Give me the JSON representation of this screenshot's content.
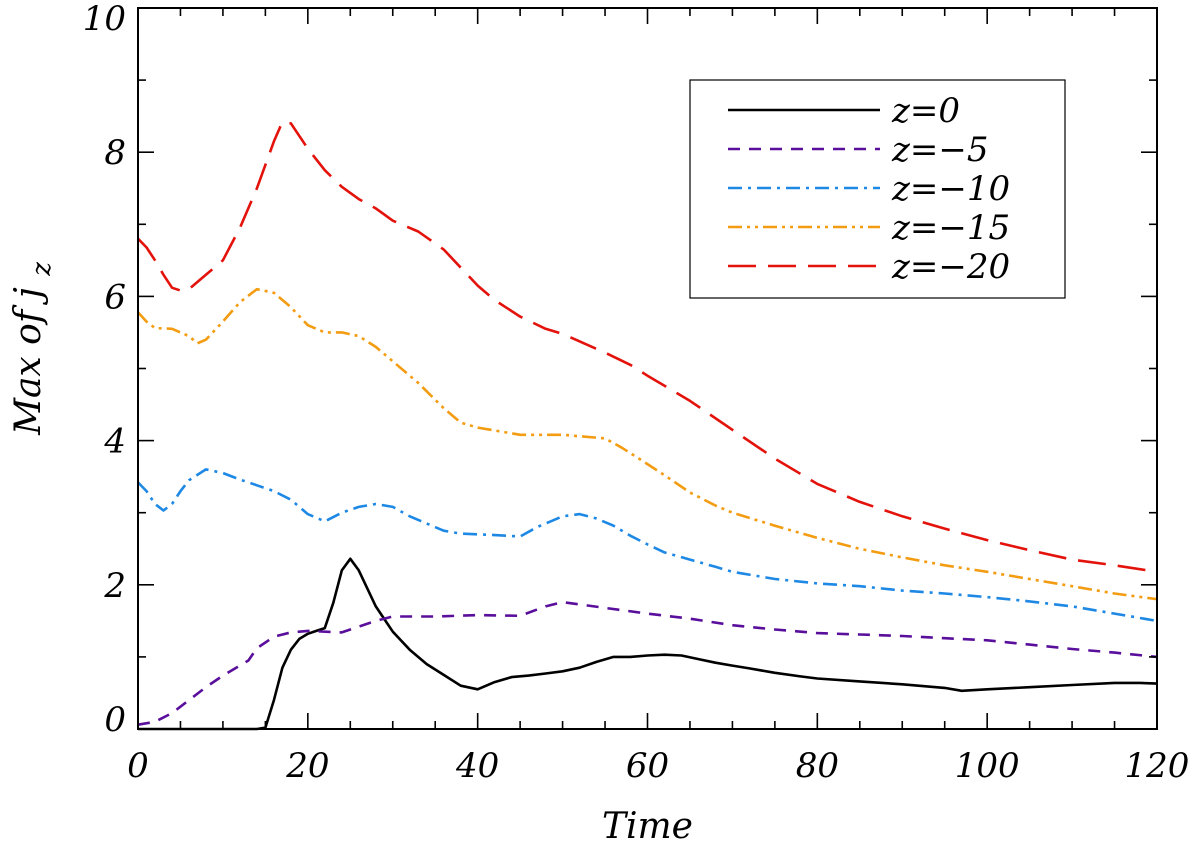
{
  "chart_data": {
    "type": "line",
    "title": "",
    "xlabel": "Time",
    "ylabel_main": "Max of j",
    "ylabel_sub": "z",
    "xlim": [
      0,
      120
    ],
    "ylim": [
      0,
      10
    ],
    "x_ticks": [
      0,
      20,
      40,
      60,
      80,
      100,
      120
    ],
    "y_ticks": [
      0,
      2,
      4,
      6,
      8,
      10
    ],
    "x_tick_labels": [
      "0",
      "20",
      "40",
      "60",
      "80",
      "100",
      "120"
    ],
    "y_tick_labels": [
      "0",
      "2",
      "4",
      "6",
      "8",
      "10"
    ],
    "grid": false,
    "legend_position": "top-right",
    "series": [
      {
        "name": "z=0",
        "color": "#000000",
        "style": "solid",
        "points": [
          [
            0,
            0
          ],
          [
            14,
            0
          ],
          [
            15,
            0.02
          ],
          [
            16,
            0.4
          ],
          [
            17,
            0.85
          ],
          [
            18,
            1.1
          ],
          [
            19,
            1.25
          ],
          [
            20,
            1.32
          ],
          [
            21,
            1.36
          ],
          [
            22,
            1.4
          ],
          [
            23,
            1.75
          ],
          [
            24,
            2.2
          ],
          [
            25,
            2.36
          ],
          [
            26,
            2.2
          ],
          [
            27,
            1.95
          ],
          [
            28,
            1.7
          ],
          [
            30,
            1.35
          ],
          [
            32,
            1.1
          ],
          [
            34,
            0.9
          ],
          [
            36,
            0.75
          ],
          [
            38,
            0.6
          ],
          [
            40,
            0.55
          ],
          [
            42,
            0.65
          ],
          [
            44,
            0.72
          ],
          [
            46,
            0.74
          ],
          [
            48,
            0.77
          ],
          [
            50,
            0.8
          ],
          [
            52,
            0.85
          ],
          [
            54,
            0.93
          ],
          [
            56,
            1.0
          ],
          [
            58,
            1.0
          ],
          [
            60,
            1.02
          ],
          [
            62,
            1.03
          ],
          [
            64,
            1.02
          ],
          [
            66,
            0.97
          ],
          [
            68,
            0.92
          ],
          [
            70,
            0.88
          ],
          [
            72,
            0.84
          ],
          [
            75,
            0.78
          ],
          [
            78,
            0.73
          ],
          [
            80,
            0.7
          ],
          [
            85,
            0.66
          ],
          [
            90,
            0.62
          ],
          [
            95,
            0.57
          ],
          [
            97,
            0.53
          ],
          [
            100,
            0.55
          ],
          [
            105,
            0.58
          ],
          [
            110,
            0.61
          ],
          [
            115,
            0.64
          ],
          [
            118,
            0.64
          ],
          [
            120,
            0.63
          ]
        ]
      },
      {
        "name": "z=−5",
        "color": "#5a0f9c",
        "style": "dashed",
        "points": [
          [
            0,
            0.06
          ],
          [
            2,
            0.1
          ],
          [
            4,
            0.22
          ],
          [
            6,
            0.4
          ],
          [
            8,
            0.58
          ],
          [
            10,
            0.74
          ],
          [
            12,
            0.88
          ],
          [
            13,
            0.95
          ],
          [
            14,
            1.12
          ],
          [
            16,
            1.28
          ],
          [
            18,
            1.34
          ],
          [
            20,
            1.36
          ],
          [
            24,
            1.34
          ],
          [
            26,
            1.42
          ],
          [
            28,
            1.5
          ],
          [
            30,
            1.56
          ],
          [
            35,
            1.56
          ],
          [
            40,
            1.58
          ],
          [
            45,
            1.57
          ],
          [
            48,
            1.7
          ],
          [
            50,
            1.76
          ],
          [
            55,
            1.68
          ],
          [
            60,
            1.6
          ],
          [
            65,
            1.53
          ],
          [
            70,
            1.44
          ],
          [
            75,
            1.38
          ],
          [
            80,
            1.33
          ],
          [
            85,
            1.31
          ],
          [
            90,
            1.29
          ],
          [
            95,
            1.26
          ],
          [
            100,
            1.23
          ],
          [
            105,
            1.17
          ],
          [
            110,
            1.11
          ],
          [
            115,
            1.06
          ],
          [
            120,
            1.0
          ]
        ]
      },
      {
        "name": "z=−10",
        "color": "#1e88e5",
        "style": "dashdot",
        "points": [
          [
            0,
            3.42
          ],
          [
            1,
            3.3
          ],
          [
            2,
            3.12
          ],
          [
            3,
            3.03
          ],
          [
            4,
            3.12
          ],
          [
            5,
            3.3
          ],
          [
            6,
            3.45
          ],
          [
            8,
            3.6
          ],
          [
            10,
            3.55
          ],
          [
            12,
            3.46
          ],
          [
            14,
            3.38
          ],
          [
            16,
            3.3
          ],
          [
            18,
            3.18
          ],
          [
            20,
            2.98
          ],
          [
            22,
            2.88
          ],
          [
            24,
            3.0
          ],
          [
            26,
            3.08
          ],
          [
            28,
            3.12
          ],
          [
            30,
            3.08
          ],
          [
            32,
            2.95
          ],
          [
            34,
            2.85
          ],
          [
            36,
            2.75
          ],
          [
            38,
            2.71
          ],
          [
            40,
            2.7
          ],
          [
            42,
            2.69
          ],
          [
            45,
            2.67
          ],
          [
            47,
            2.8
          ],
          [
            50,
            2.95
          ],
          [
            52,
            2.98
          ],
          [
            54,
            2.92
          ],
          [
            56,
            2.82
          ],
          [
            58,
            2.68
          ],
          [
            60,
            2.56
          ],
          [
            62,
            2.45
          ],
          [
            65,
            2.35
          ],
          [
            68,
            2.25
          ],
          [
            70,
            2.18
          ],
          [
            75,
            2.08
          ],
          [
            80,
            2.02
          ],
          [
            85,
            1.98
          ],
          [
            90,
            1.92
          ],
          [
            95,
            1.88
          ],
          [
            100,
            1.83
          ],
          [
            105,
            1.77
          ],
          [
            110,
            1.7
          ],
          [
            115,
            1.6
          ],
          [
            120,
            1.5
          ]
        ]
      },
      {
        "name": "z=−15",
        "color": "#f39c12",
        "style": "dashdotdot",
        "points": [
          [
            0,
            5.78
          ],
          [
            1,
            5.65
          ],
          [
            2,
            5.56
          ],
          [
            4,
            5.55
          ],
          [
            6,
            5.45
          ],
          [
            7,
            5.35
          ],
          [
            8,
            5.4
          ],
          [
            10,
            5.65
          ],
          [
            12,
            5.92
          ],
          [
            14,
            6.1
          ],
          [
            16,
            6.05
          ],
          [
            18,
            5.85
          ],
          [
            20,
            5.6
          ],
          [
            22,
            5.5
          ],
          [
            24,
            5.5
          ],
          [
            26,
            5.45
          ],
          [
            28,
            5.3
          ],
          [
            30,
            5.1
          ],
          [
            33,
            4.8
          ],
          [
            36,
            4.45
          ],
          [
            38,
            4.25
          ],
          [
            40,
            4.18
          ],
          [
            45,
            4.08
          ],
          [
            50,
            4.08
          ],
          [
            55,
            4.03
          ],
          [
            57,
            3.9
          ],
          [
            59,
            3.75
          ],
          [
            62,
            3.52
          ],
          [
            65,
            3.28
          ],
          [
            68,
            3.1
          ],
          [
            70,
            3.0
          ],
          [
            75,
            2.82
          ],
          [
            80,
            2.65
          ],
          [
            85,
            2.5
          ],
          [
            90,
            2.38
          ],
          [
            95,
            2.27
          ],
          [
            100,
            2.18
          ],
          [
            105,
            2.08
          ],
          [
            110,
            1.98
          ],
          [
            115,
            1.88
          ],
          [
            120,
            1.8
          ]
        ]
      },
      {
        "name": "z=−20",
        "color": "#e3120b",
        "style": "longdash",
        "points": [
          [
            0,
            6.8
          ],
          [
            1,
            6.68
          ],
          [
            2,
            6.5
          ],
          [
            3,
            6.3
          ],
          [
            4,
            6.12
          ],
          [
            5,
            6.08
          ],
          [
            6,
            6.1
          ],
          [
            8,
            6.3
          ],
          [
            10,
            6.5
          ],
          [
            12,
            6.95
          ],
          [
            14,
            7.5
          ],
          [
            16,
            8.15
          ],
          [
            17,
            8.42
          ],
          [
            18,
            8.4
          ],
          [
            20,
            8.05
          ],
          [
            22,
            7.75
          ],
          [
            24,
            7.52
          ],
          [
            26,
            7.35
          ],
          [
            28,
            7.22
          ],
          [
            30,
            7.05
          ],
          [
            33,
            6.9
          ],
          [
            36,
            6.65
          ],
          [
            38,
            6.4
          ],
          [
            40,
            6.15
          ],
          [
            42,
            5.95
          ],
          [
            45,
            5.72
          ],
          [
            48,
            5.55
          ],
          [
            50,
            5.48
          ],
          [
            55,
            5.22
          ],
          [
            58,
            5.05
          ],
          [
            60,
            4.9
          ],
          [
            65,
            4.55
          ],
          [
            70,
            4.15
          ],
          [
            75,
            3.75
          ],
          [
            80,
            3.4
          ],
          [
            85,
            3.15
          ],
          [
            90,
            2.95
          ],
          [
            95,
            2.78
          ],
          [
            100,
            2.62
          ],
          [
            105,
            2.48
          ],
          [
            110,
            2.35
          ],
          [
            115,
            2.27
          ],
          [
            120,
            2.18
          ]
        ]
      }
    ]
  }
}
